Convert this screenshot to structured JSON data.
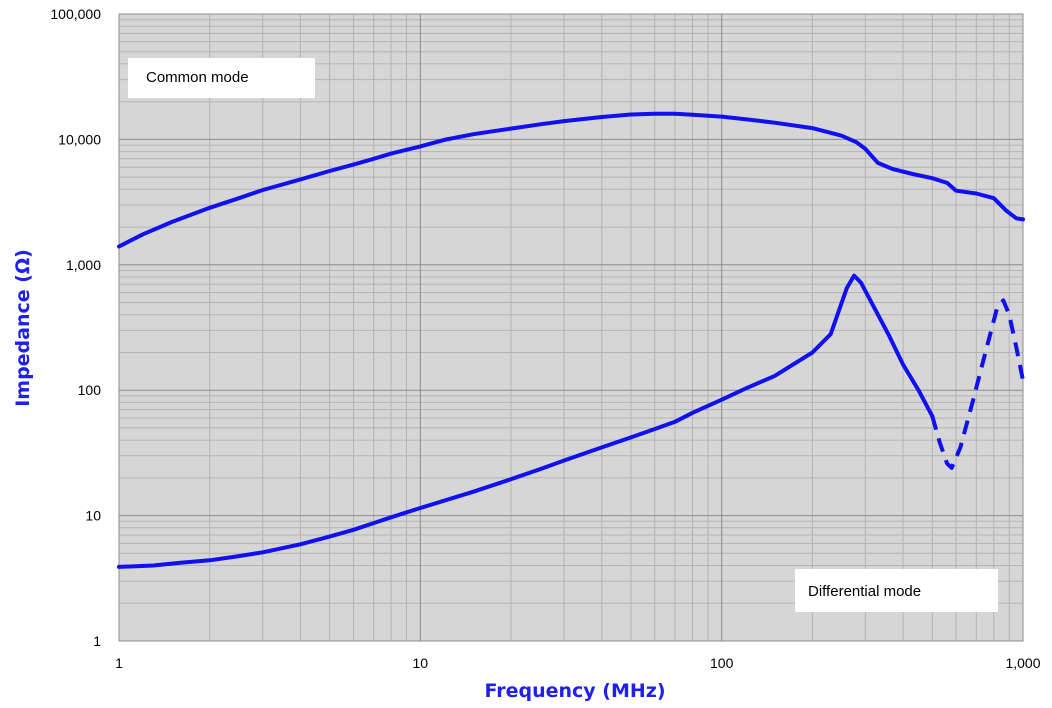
{
  "chart_data": {
    "type": "line",
    "xlabel": "Frequency (MHz)",
    "ylabel": "Impedance (Ω)",
    "x_scale": "log",
    "y_scale": "log",
    "xlim": [
      1,
      1000
    ],
    "ylim": [
      1,
      100000
    ],
    "x_ticks": [
      1,
      10,
      100,
      1000
    ],
    "x_tick_labels": [
      "1",
      "10",
      "100",
      "1,000"
    ],
    "y_ticks": [
      1,
      10,
      100,
      1000,
      10000,
      100000
    ],
    "y_tick_labels": [
      "1",
      "10",
      "100",
      "1,000",
      "10,000",
      "100,000"
    ],
    "grid": true,
    "annotations": [
      "Common mode",
      "Differential mode"
    ],
    "series": [
      {
        "label": "Common mode",
        "color": "#1010f0",
        "style": "solid",
        "points": [
          [
            1,
            1400
          ],
          [
            1.2,
            1750
          ],
          [
            1.5,
            2200
          ],
          [
            2,
            2850
          ],
          [
            2.5,
            3400
          ],
          [
            3,
            3950
          ],
          [
            4,
            4800
          ],
          [
            5,
            5600
          ],
          [
            6,
            6300
          ],
          [
            7,
            7000
          ],
          [
            8,
            7700
          ],
          [
            10,
            8800
          ],
          [
            12,
            9900
          ],
          [
            15,
            11000
          ],
          [
            20,
            12200
          ],
          [
            25,
            13200
          ],
          [
            30,
            14000
          ],
          [
            40,
            15100
          ],
          [
            50,
            15800
          ],
          [
            60,
            16000
          ],
          [
            70,
            16000
          ],
          [
            80,
            15700
          ],
          [
            100,
            15200
          ],
          [
            120,
            14500
          ],
          [
            150,
            13600
          ],
          [
            200,
            12300
          ],
          [
            250,
            10700
          ],
          [
            280,
            9500
          ],
          [
            300,
            8400
          ],
          [
            330,
            6500
          ],
          [
            370,
            5800
          ],
          [
            430,
            5300
          ],
          [
            500,
            4900
          ],
          [
            560,
            4500
          ],
          [
            600,
            3900
          ],
          [
            700,
            3700
          ],
          [
            800,
            3400
          ],
          [
            880,
            2700
          ],
          [
            950,
            2350
          ],
          [
            1000,
            2300
          ]
        ]
      },
      {
        "label": "Differential mode",
        "color": "#1010f0",
        "style": "solid",
        "points": [
          [
            1,
            3.9
          ],
          [
            1.3,
            4.0
          ],
          [
            1.6,
            4.2
          ],
          [
            2,
            4.4
          ],
          [
            2.5,
            4.75
          ],
          [
            3,
            5.1
          ],
          [
            4,
            5.9
          ],
          [
            5,
            6.8
          ],
          [
            6,
            7.7
          ],
          [
            8,
            9.7
          ],
          [
            10,
            11.5
          ],
          [
            15,
            15.5
          ],
          [
            20,
            19.5
          ],
          [
            25,
            23.5
          ],
          [
            30,
            27.5
          ],
          [
            40,
            35
          ],
          [
            50,
            42
          ],
          [
            60,
            49
          ],
          [
            70,
            56
          ],
          [
            80,
            66
          ],
          [
            100,
            84
          ],
          [
            120,
            103
          ],
          [
            150,
            130
          ],
          [
            200,
            200
          ],
          [
            230,
            280
          ],
          [
            260,
            650
          ],
          [
            275,
            820
          ],
          [
            290,
            720
          ],
          [
            320,
            460
          ],
          [
            360,
            270
          ],
          [
            400,
            160
          ],
          [
            450,
            100
          ],
          [
            500,
            62
          ]
        ]
      },
      {
        "label": "Differential mode (dashed)",
        "color": "#1010f0",
        "style": "dashed",
        "points": [
          [
            500,
            62
          ],
          [
            530,
            38
          ],
          [
            560,
            26
          ],
          [
            580,
            24
          ],
          [
            620,
            35
          ],
          [
            680,
            80
          ],
          [
            750,
            200
          ],
          [
            820,
            450
          ],
          [
            860,
            520
          ],
          [
            900,
            400
          ],
          [
            950,
            220
          ],
          [
            1000,
            120
          ]
        ]
      }
    ]
  }
}
